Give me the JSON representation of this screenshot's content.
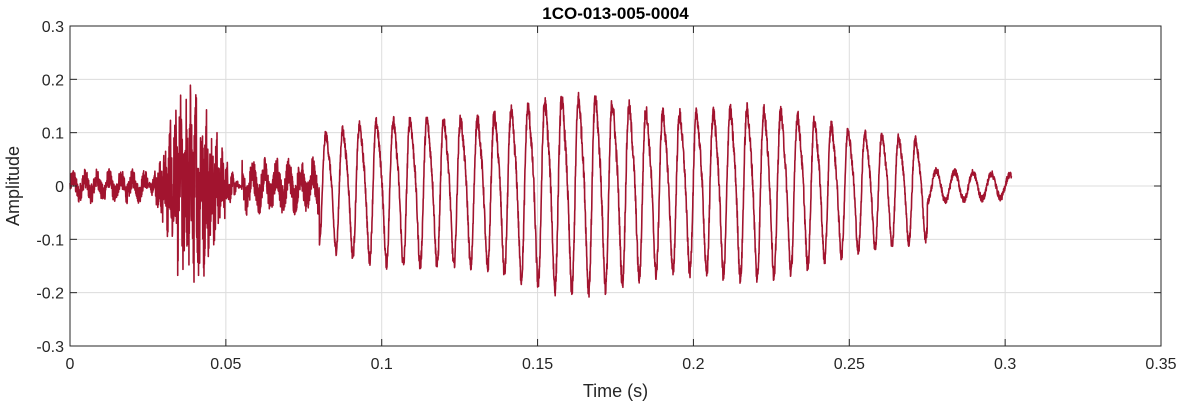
{
  "chart_data": {
    "type": "line",
    "title": "1CO-013-005-0004",
    "xlabel": "Time (s)",
    "ylabel": "Amplitude",
    "xlim": [
      0,
      0.35
    ],
    "ylim": [
      -0.3,
      0.3
    ],
    "grid": true,
    "xticks": [
      0,
      0.05,
      0.1,
      0.15,
      0.2,
      0.25,
      0.3,
      0.35
    ],
    "xtick_labels": [
      "0",
      "0.05",
      "0.1",
      "0.15",
      "0.2",
      "0.25",
      "0.3",
      "0.35"
    ],
    "yticks": [
      -0.3,
      -0.2,
      -0.1,
      0,
      0.1,
      0.2,
      0.3
    ],
    "ytick_labels": [
      "-0.3",
      "-0.2",
      "-0.1",
      "0",
      "0.1",
      "0.2",
      "0.3"
    ],
    "series_color": "#A2142F",
    "series": [
      {
        "signal_end_s": 0.302,
        "segments": [
          {
            "t0": 0.0,
            "t1": 0.025,
            "kind": "noise",
            "amp": 0.03
          },
          {
            "t0": 0.025,
            "t1": 0.055,
            "kind": "burst",
            "amp": 0.19
          },
          {
            "t0": 0.055,
            "t1": 0.08,
            "kind": "noise",
            "amp": 0.05
          },
          {
            "t0": 0.08,
            "t1": 0.275,
            "kind": "voiced",
            "amp": 0.2,
            "f0_hz": 185
          },
          {
            "t0": 0.275,
            "t1": 0.302,
            "kind": "decay",
            "amp": 0.03
          }
        ]
      }
    ]
  }
}
